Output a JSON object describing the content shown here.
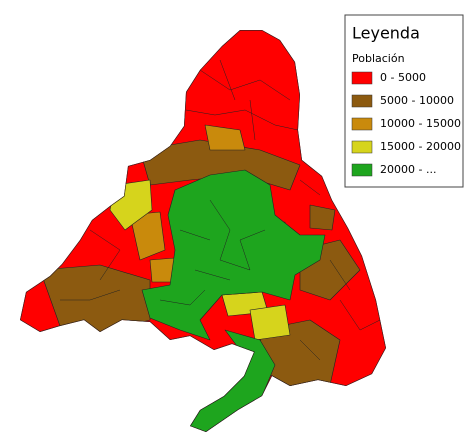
{
  "legend": {
    "title": "Leyenda",
    "subtitle": "Población",
    "items": [
      {
        "label": "0 - 5000",
        "color": "#ff0000"
      },
      {
        "label": "5000 - 10000",
        "color": "#8c5a10"
      },
      {
        "label": "10000 - 15000",
        "color": "#c98a0c"
      },
      {
        "label": "15000 - 20000",
        "color": "#d6d41c"
      },
      {
        "label": "20000 - ...",
        "color": "#1ea51e"
      }
    ]
  }
}
